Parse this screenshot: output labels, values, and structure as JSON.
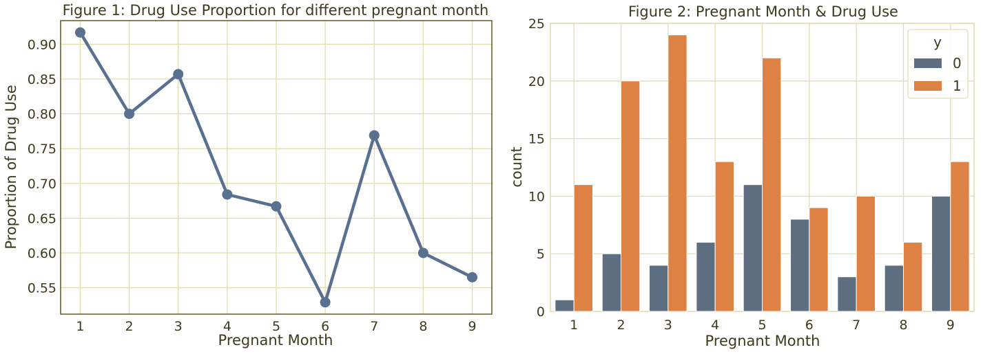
{
  "colors": {
    "line": "#5a7090",
    "bar0": "#5f6f82",
    "bar1": "#dd8244",
    "grid": "#e2ddb0",
    "frame": "#6b6430",
    "text": "#3d3a1e"
  },
  "chart_data": [
    {
      "type": "line",
      "title": "Figure 1: Drug Use Proportion for different pregnant month",
      "xlabel": "Pregnant Month",
      "ylabel": "Proportion of Drug Use",
      "x": [
        1,
        2,
        3,
        4,
        5,
        6,
        7,
        8,
        9
      ],
      "y": [
        0.917,
        0.8,
        0.857,
        0.684,
        0.667,
        0.529,
        0.769,
        0.6,
        0.565
      ],
      "xticks": [
        "1",
        "2",
        "3",
        "4",
        "5",
        "6",
        "7",
        "8",
        "9"
      ],
      "yticks": [
        "0.55",
        "0.60",
        "0.65",
        "0.70",
        "0.75",
        "0.80",
        "0.85",
        "0.90"
      ],
      "ylim": [
        0.512,
        0.934
      ],
      "grid": true
    },
    {
      "type": "bar",
      "title": "Figure 2: Pregnant Month & Drug Use",
      "xlabel": "Pregnant Month",
      "ylabel": "count",
      "categories": [
        "1",
        "2",
        "3",
        "4",
        "5",
        "6",
        "7",
        "8",
        "9"
      ],
      "series": [
        {
          "name": "0",
          "values": [
            1,
            5,
            4,
            6,
            11,
            8,
            3,
            4,
            10
          ]
        },
        {
          "name": "1",
          "values": [
            11,
            20,
            24,
            13,
            22,
            9,
            10,
            6,
            13
          ]
        }
      ],
      "yticks": [
        "0",
        "5",
        "10",
        "15",
        "20",
        "25"
      ],
      "ylim": [
        0,
        25
      ],
      "legend": {
        "title": "y",
        "position": "top-right"
      },
      "grid": true
    }
  ]
}
